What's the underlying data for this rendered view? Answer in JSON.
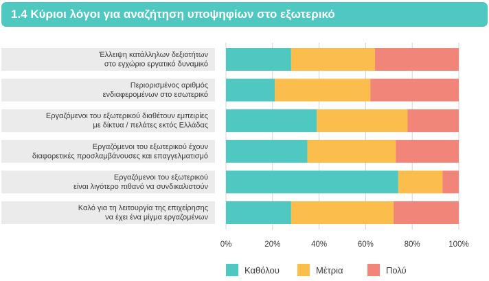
{
  "title": "1.4 Κύριοι λόγοι για αναζήτηση υποψηφίων στο εξωτερικό",
  "colors": {
    "title_bg": "#4ec8c1",
    "label_bg": "#ebebeb",
    "grid": "#d4d4d4"
  },
  "chart_data": {
    "type": "bar",
    "orientation": "horizontal",
    "stacked": true,
    "percent": true,
    "categories": [
      [
        "Έλλειψη κατάλληλων δεξιοτήτων",
        "στο εγχώριο εργατικό  δυναμικό"
      ],
      [
        "Περιορισμένος αριθμός",
        "ενδιαφερομένων στο εσωτερικό"
      ],
      [
        "Εργαζόμενοι του εξωτερικού διαθέτουν εμπειρίες",
        "με δίκτυα / πελάτες εκτός Ελλάδας"
      ],
      [
        "Εργαζόμενοι του εξωτερικού έχουν",
        "διαφορετικές προσλαμβάνουσες και επαγγελματισμό"
      ],
      [
        "Εργαζόμενοι του εξωτερικού",
        "είναι λιγότερο πιθανό να συνδικαλιστούν"
      ],
      [
        "Καλό για τη λειτουργία της επιχείρησης",
        "να έχει ένα μίγμα εργαζομένων"
      ]
    ],
    "series": [
      {
        "name": "Καθόλου",
        "color": "#4ec8c1",
        "values": [
          28,
          21,
          39,
          35,
          74,
          28
        ]
      },
      {
        "name": "Μέτρια",
        "color": "#fbbd4b",
        "values": [
          36,
          41,
          39,
          38,
          19,
          44
        ]
      },
      {
        "name": "Πολύ",
        "color": "#f2857a",
        "values": [
          36,
          38,
          22,
          27,
          7,
          28
        ]
      }
    ],
    "xlim": [
      0,
      100
    ],
    "xticks": [
      "0%",
      "20%",
      "40%",
      "60%",
      "80%",
      "100%"
    ],
    "grid": true,
    "legend_position": "bottom"
  }
}
